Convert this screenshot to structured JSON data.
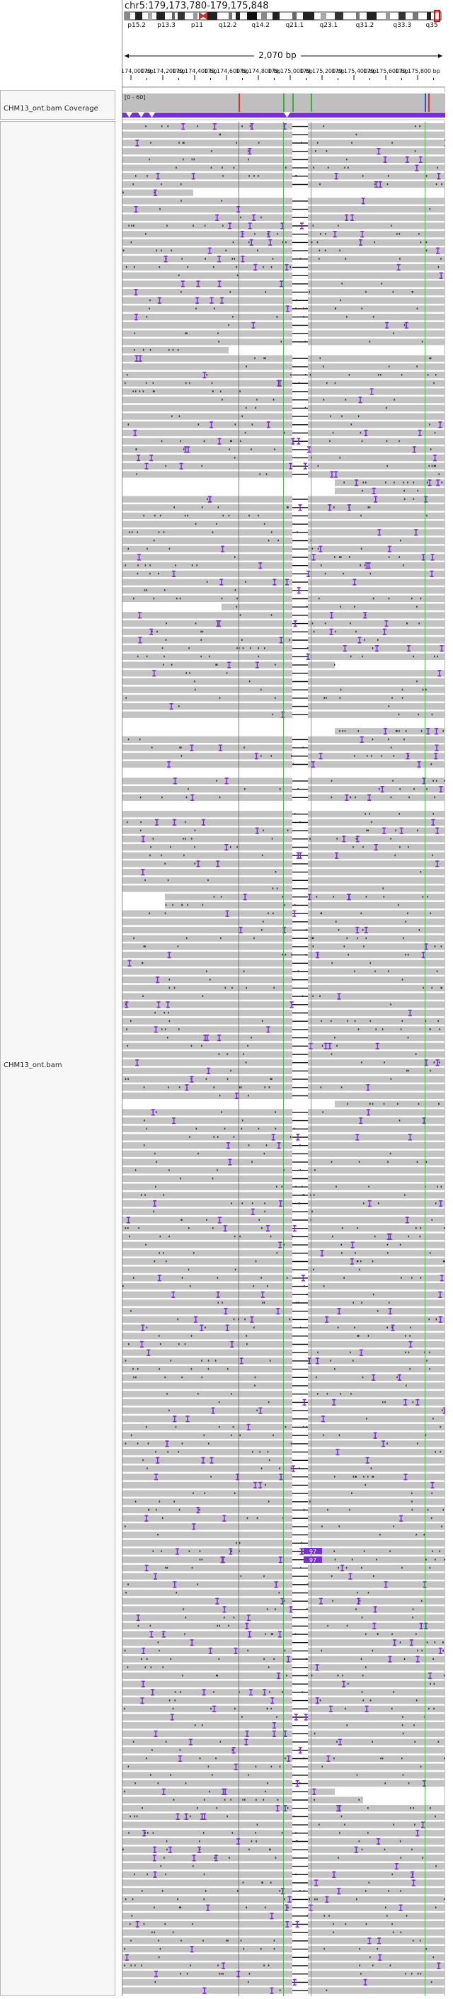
{
  "locus": "chr5:179,173,780-179,175,848",
  "ruler": {
    "span_label": "2,070 bp",
    "tick_labels": [
      "179,174,000 bp",
      "179,174,200 bp",
      "179,174,400 bp",
      "179,174,600 bp",
      "179,174,800 bp",
      "179,175,000 bp",
      "179,175,200 bp",
      "179,175,400 bp",
      "179,175,600 bp",
      "179,175,800 bp"
    ]
  },
  "ideogram": {
    "bands": [
      "p15.2",
      "p13.3",
      "p11",
      "q12.2",
      "q14.2",
      "q21.1",
      "q23.1",
      "q31.2",
      "q33.3",
      "q35"
    ]
  },
  "tracks": {
    "coverage": {
      "name": "CHM13_ont.bam Coverage",
      "range_label": "[0 - 60]"
    },
    "alignment": {
      "name": "CHM13_ont.bam"
    }
  },
  "insertion_labels": [
    "97",
    "97"
  ],
  "colors": {
    "read": "#c3c3c3",
    "mismatch_insertion": "#7a2ed8",
    "coverage": "#bfbfbf",
    "marker_red": "#e03020",
    "marker_green": "#38b038",
    "marker_blue": "#3050d0"
  }
}
